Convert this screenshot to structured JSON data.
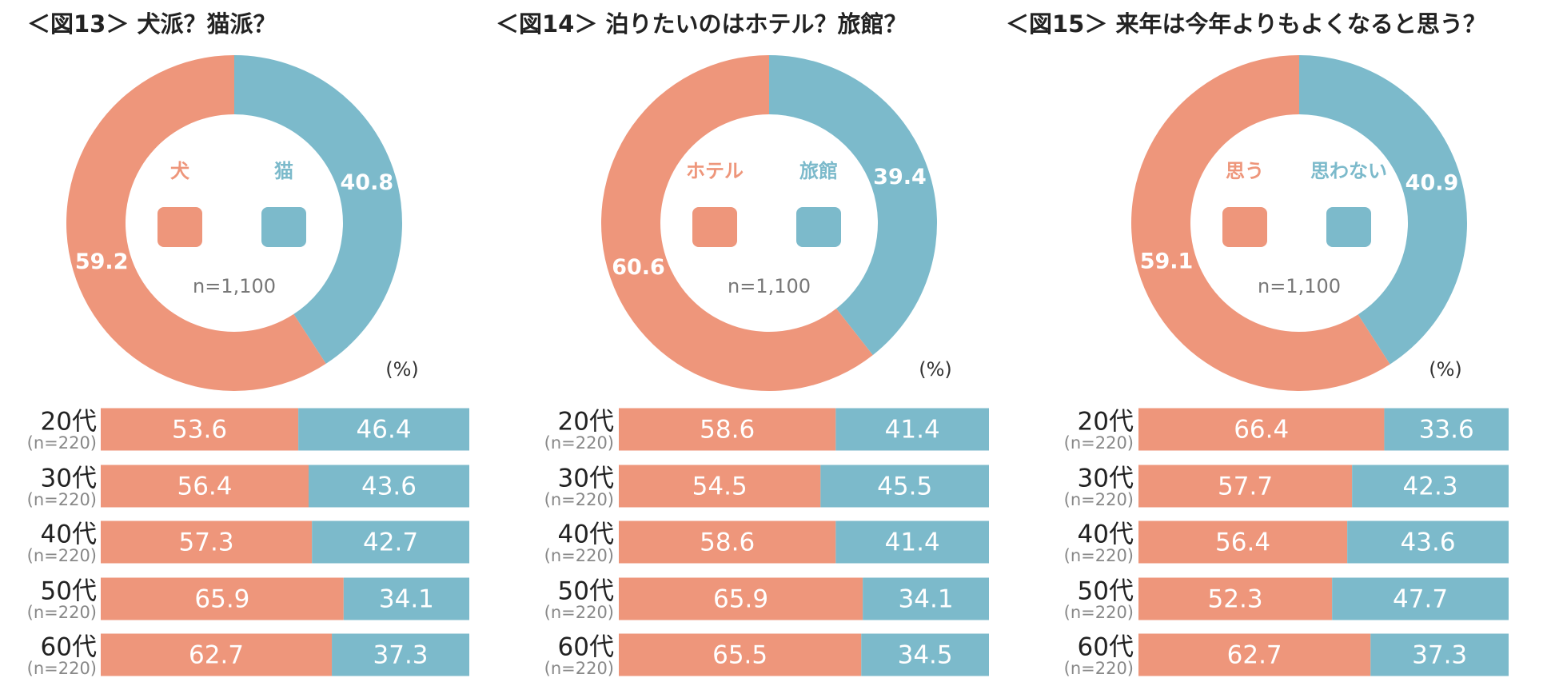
{
  "chart_data": [
    {
      "type": "donut",
      "title": "＜図13＞ 犬派？猫派？",
      "categories": [
        "犬",
        "猫"
      ],
      "values": [
        59.2,
        40.8
      ],
      "colors": [
        "#ee967b",
        "#7cbacb"
      ],
      "note": "n=1,100",
      "unit": "(%)",
      "bars": {
        "type": "bar",
        "categories": [
          "20代",
          "30代",
          "40代",
          "50代",
          "60代"
        ],
        "subcategories": [
          "(n=220)",
          "(n=220)",
          "(n=220)",
          "(n=220)",
          "(n=220)"
        ],
        "xlim": [
          0,
          100
        ],
        "series": [
          {
            "color": "#ee967b",
            "values": [
              53.6,
              56.4,
              57.3,
              65.9,
              62.7
            ]
          },
          {
            "color": "#7cbacb",
            "values": [
              46.4,
              43.6,
              42.7,
              34.1,
              37.3
            ]
          }
        ]
      }
    },
    {
      "type": "donut",
      "title": "＜図14＞ 泊りたいのはホテル？旅館？",
      "categories": [
        "ホテル",
        "旅館"
      ],
      "values": [
        60.6,
        39.4
      ],
      "colors": [
        "#ee967b",
        "#7cbacb"
      ],
      "note": "n=1,100",
      "unit": "(%)",
      "bars": {
        "type": "bar",
        "categories": [
          "20代",
          "30代",
          "40代",
          "50代",
          "60代"
        ],
        "subcategories": [
          "(n=220)",
          "(n=220)",
          "(n=220)",
          "(n=220)",
          "(n=220)"
        ],
        "xlim": [
          0,
          100
        ],
        "series": [
          {
            "color": "#ee967b",
            "values": [
              58.6,
              54.5,
              58.6,
              65.9,
              65.5
            ]
          },
          {
            "color": "#7cbacb",
            "values": [
              41.4,
              45.5,
              41.4,
              34.1,
              34.5
            ]
          }
        ]
      }
    },
    {
      "type": "donut",
      "title": "＜図15＞ 来年は今年よりもよくなると思う？",
      "categories": [
        "思う",
        "思わない"
      ],
      "values": [
        59.1,
        40.9
      ],
      "colors": [
        "#ee967b",
        "#7cbacb"
      ],
      "note": "n=1,100",
      "unit": "(%)",
      "bars": {
        "type": "bar",
        "categories": [
          "20代",
          "30代",
          "40代",
          "50代",
          "60代"
        ],
        "subcategories": [
          "(n=220)",
          "(n=220)",
          "(n=220)",
          "(n=220)",
          "(n=220)"
        ],
        "xlim": [
          0,
          100
        ],
        "series": [
          {
            "color": "#ee967b",
            "values": [
              66.4,
              57.7,
              56.4,
              52.3,
              62.7
            ]
          },
          {
            "color": "#7cbacb",
            "values": [
              33.6,
              42.3,
              43.6,
              47.7,
              37.3
            ]
          }
        ]
      }
    }
  ]
}
